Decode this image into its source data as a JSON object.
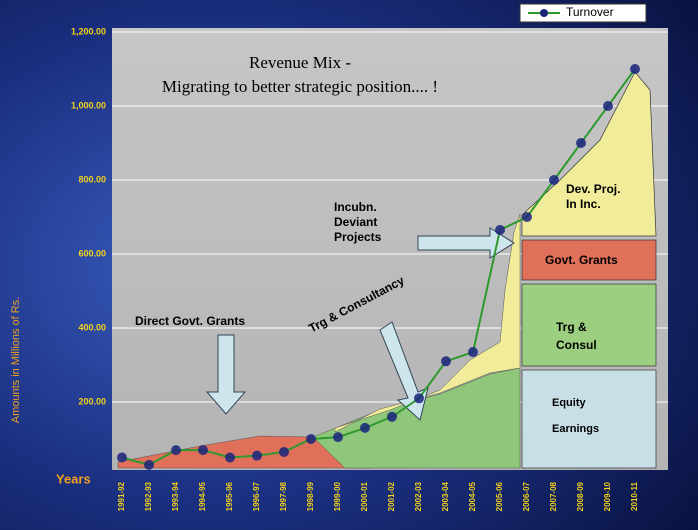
{
  "chart_data": {
    "type": "line",
    "title": "Revenue Mix -",
    "subtitle": "Migrating to better strategic position.... !",
    "y_label": "Amounts in Millions of Rs.",
    "x_label": "Years",
    "categories": [
      "1991-92",
      "1992-93",
      "1993-94",
      "1994-95",
      "1995-96",
      "1996-97",
      "1997-98",
      "1998-99",
      "1999-00",
      "2000-01",
      "2001-02",
      "2002-03",
      "2003-04",
      "2004-05",
      "2005-06",
      "2006-07",
      "2007-08",
      "2008-09",
      "2009-10",
      "2010-11"
    ],
    "series": [
      {
        "name": "Turnover",
        "color": "#2e9a2e",
        "marker_color": "#1a237e",
        "values": [
          50,
          30,
          70,
          70,
          50,
          55,
          65,
          100,
          105,
          130,
          160,
          210,
          310,
          335,
          665,
          700,
          800,
          900,
          1000,
          1100
        ]
      }
    ],
    "ylim": [
      0,
      1200
    ],
    "yticks": [
      {
        "value": 200,
        "label": "200.00"
      },
      {
        "value": 400,
        "label": "400.00"
      },
      {
        "value": 600,
        "label": "600.00"
      },
      {
        "value": 800,
        "label": "800.00"
      },
      {
        "value": 1000,
        "label": "1,000.00"
      },
      {
        "value": 1200,
        "label": "1,200.00"
      }
    ],
    "grid": true,
    "legend": "top-right",
    "annotations": [
      "Direct Govt. Grants",
      "Trg & Consultancy",
      "Incubn. Deviant Projects",
      "Dev. Proj. In Inc.",
      "Govt. Grants",
      "Trg & Consul",
      "Equity Earnings"
    ]
  }
}
